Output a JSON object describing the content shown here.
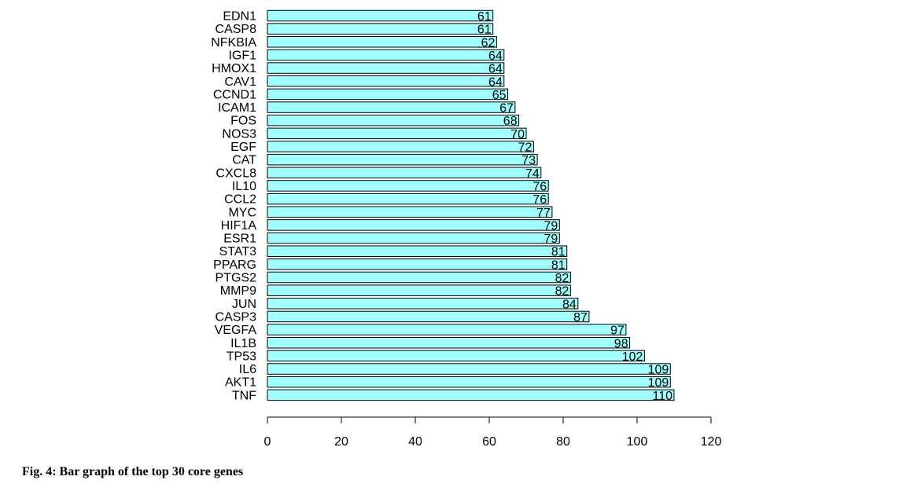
{
  "caption": "Fig. 4: Bar graph of the top 30 core genes",
  "chart_data": {
    "type": "bar",
    "orientation": "horizontal",
    "categories": [
      "EDN1",
      "CASP8",
      "NFKBIA",
      "IGF1",
      "HMOX1",
      "CAV1",
      "CCND1",
      "ICAM1",
      "FOS",
      "NOS3",
      "EGF",
      "CAT",
      "CXCL8",
      "IL10",
      "CCL2",
      "MYC",
      "HIF1A",
      "ESR1",
      "STAT3",
      "PPARG",
      "PTGS2",
      "MMP9",
      "JUN",
      "CASP3",
      "VEGFA",
      "IL1B",
      "TP53",
      "IL6",
      "AKT1",
      "TNF"
    ],
    "values": [
      61,
      61,
      62,
      64,
      64,
      64,
      65,
      67,
      68,
      70,
      72,
      73,
      74,
      76,
      76,
      77,
      79,
      79,
      81,
      81,
      82,
      82,
      84,
      87,
      97,
      98,
      102,
      109,
      109,
      110
    ],
    "xlim": [
      0,
      120
    ],
    "xticks": [
      0,
      20,
      40,
      60,
      80,
      100,
      120
    ],
    "title": "",
    "xlabel": "",
    "ylabel": "",
    "bar_color": "#a0ffff",
    "bar_border_color": "#000000",
    "grid": false
  }
}
